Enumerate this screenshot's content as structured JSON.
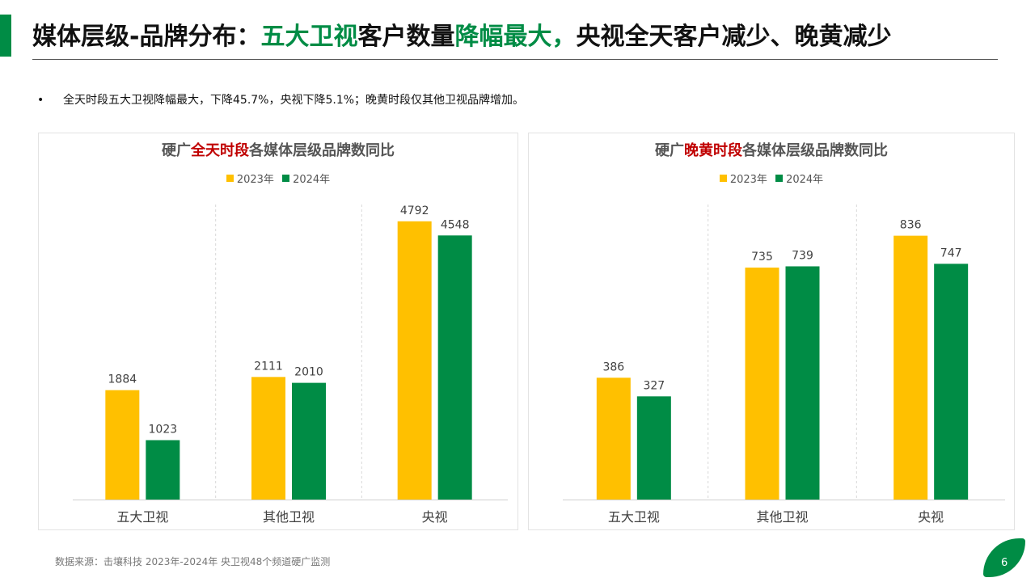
{
  "header": {
    "title_part1": "媒体层级-品牌分布：",
    "title_part2": "五大卫视",
    "title_part3": "客户数量",
    "title_part4": "降幅最大，",
    "title_part5": "央视全天客户减少、晚黄减少"
  },
  "summary": {
    "bullet": "•",
    "text": "全天时段五大卫视降幅最大，下降45.7%，央视下降5.1%；晚黄时段仅其他卫视品牌增加。"
  },
  "colors": {
    "accent": "#008c45",
    "series_2023": "#ffc000",
    "series_2024": "#008c45",
    "title_highlight": "#c00000"
  },
  "chart_data": [
    {
      "type": "bar",
      "title_prefix": "硬广",
      "title_highlight": "全天时段",
      "title_suffix": "各媒体层级品牌数同比",
      "categories": [
        "五大卫视",
        "其他卫视",
        "央视"
      ],
      "series": [
        {
          "name": "2023年",
          "values": [
            1884,
            2111,
            4792
          ]
        },
        {
          "name": "2024年",
          "values": [
            1023,
            2010,
            4548
          ]
        }
      ],
      "ylim": [
        0,
        4900
      ],
      "legend": "top-center",
      "grid": "vertical dashed separators"
    },
    {
      "type": "bar",
      "title_prefix": "硬广",
      "title_highlight": "晚黄时段",
      "title_suffix": "各媒体层级品牌数同比",
      "categories": [
        "五大卫视",
        "其他卫视",
        "央视"
      ],
      "series": [
        {
          "name": "2023年",
          "values": [
            386,
            735,
            836
          ]
        },
        {
          "name": "2024年",
          "values": [
            327,
            739,
            747
          ]
        }
      ],
      "ylim": [
        0,
        876
      ],
      "legend": "top-center",
      "grid": "vertical dashed separators"
    }
  ],
  "footer": {
    "source": "数据来源：击壤科技  2023年-2024年 央卫视48个频道硬广监测",
    "page_number": "6"
  }
}
